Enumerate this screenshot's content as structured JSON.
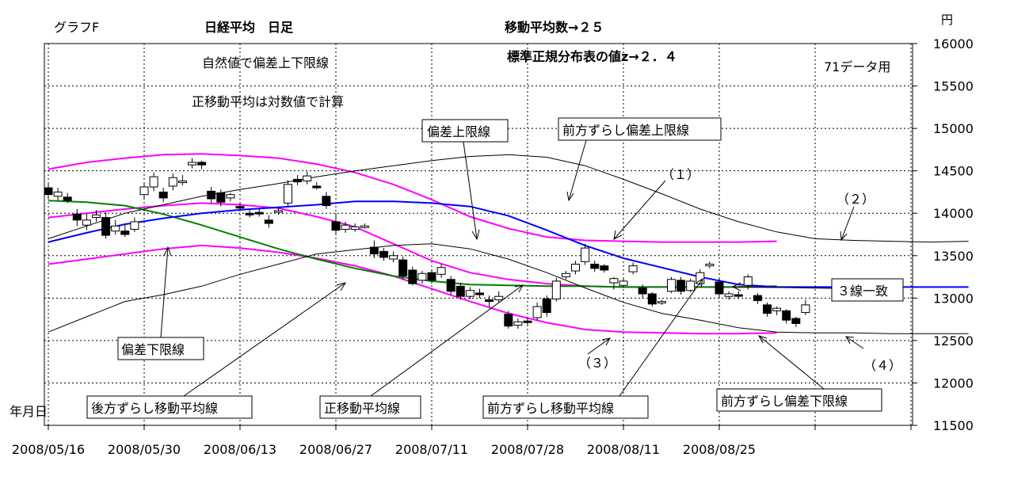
{
  "header": {
    "graph_label": "グラフF",
    "title": "日経平均　日足",
    "ma_period": "移動平均数→２５",
    "z_value": "標準正規分布表の値z→２．４",
    "note_natural": "自然値で偏差上下限線",
    "note_log": "正移動平均は対数値で計算",
    "data_note": "71データ用",
    "y_unit": "円",
    "x_unit": "年月日"
  },
  "annotations": {
    "upper_band": "偏差上限線",
    "forward_upper": "前方ずらし偏差上限線",
    "lower_band": "偏差下限線",
    "backward_ma": "後方ずらし移動平均線",
    "positive_ma": "正移動平均線",
    "forward_ma": "前方ずらし移動平均線",
    "forward_lower": "前方ずらし偏差下限線",
    "three_lines": "３線一致",
    "n1": "（１）",
    "n2": "（２）",
    "n3": "（３）",
    "n4": "（４）"
  },
  "chart_data": {
    "type": "line",
    "title": "日経平均　日足",
    "xlabel": "年月日",
    "ylabel": "円",
    "ylim": [
      11500,
      16000
    ],
    "yticks": [
      11500,
      12000,
      12500,
      13000,
      13500,
      14000,
      14500,
      15000,
      15500,
      16000
    ],
    "xlim": [
      0,
      90
    ],
    "x_ticks": [
      {
        "i": 0,
        "label": "2008/05/16"
      },
      {
        "i": 10,
        "label": "2008/05/30"
      },
      {
        "i": 20,
        "label": "2008/06/13"
      },
      {
        "i": 30,
        "label": "2008/06/27"
      },
      {
        "i": 40,
        "label": "2008/07/11"
      },
      {
        "i": 50,
        "label": "2008/07/28"
      },
      {
        "i": 60,
        "label": "2008/08/11"
      },
      {
        "i": 70,
        "label": "2008/08/25"
      }
    ],
    "grid": true,
    "candles": [
      [
        14300,
        14220,
        14350,
        14180
      ],
      [
        14200,
        14250,
        14300,
        14150
      ],
      [
        14190,
        14150,
        14240,
        14120
      ],
      [
        13990,
        13920,
        14050,
        13850
      ],
      [
        13860,
        13920,
        14000,
        13800
      ],
      [
        13950,
        13980,
        14040,
        13900
      ],
      [
        13950,
        13740,
        14010,
        13700
      ],
      [
        13790,
        13850,
        13920,
        13750
      ],
      [
        13790,
        13750,
        13880,
        13720
      ],
      [
        13810,
        13900,
        13950,
        13780
      ],
      [
        14220,
        14310,
        14360,
        14170
      ],
      [
        14310,
        14430,
        14480,
        14260
      ],
      [
        14250,
        14180,
        14300,
        14130
      ],
      [
        14320,
        14420,
        14470,
        14270
      ],
      [
        14370,
        14380,
        14450,
        14330
      ],
      [
        14570,
        14600,
        14650,
        14530
      ],
      [
        14600,
        14570,
        14620,
        14520
      ],
      [
        14260,
        14170,
        14310,
        14120
      ],
      [
        14240,
        14130,
        14280,
        14080
      ],
      [
        14180,
        14220,
        14240,
        14140
      ],
      [
        14080,
        14070,
        14130,
        14040
      ],
      [
        14000,
        13980,
        14040,
        13950
      ],
      [
        14010,
        14000,
        14060,
        13960
      ],
      [
        13920,
        13880,
        13980,
        13830
      ],
      [
        14020,
        14030,
        14080,
        13980
      ],
      [
        14120,
        14340,
        14390,
        14080
      ],
      [
        14400,
        14370,
        14450,
        14330
      ],
      [
        14380,
        14440,
        14490,
        14340
      ],
      [
        14320,
        14300,
        14370,
        14280
      ],
      [
        14200,
        14090,
        14250,
        14050
      ],
      [
        13900,
        13800,
        14000,
        13750
      ],
      [
        13810,
        13860,
        13900,
        13770
      ],
      [
        13810,
        13840,
        13880,
        13780
      ],
      [
        13840,
        13850,
        13880,
        13820
      ],
      [
        13600,
        13520,
        13680,
        13470
      ],
      [
        13550,
        13480,
        13590,
        13440
      ],
      [
        13460,
        13500,
        13550,
        13420
      ],
      [
        13450,
        13260,
        13490,
        13220
      ],
      [
        13330,
        13170,
        13370,
        13150
      ],
      [
        13210,
        13290,
        13320,
        13170
      ],
      [
        13300,
        13210,
        13340,
        13170
      ],
      [
        13280,
        13360,
        13400,
        13240
      ],
      [
        13220,
        13080,
        13260,
        13040
      ],
      [
        13140,
        13020,
        13180,
        12980
      ],
      [
        13020,
        13090,
        13130,
        12990
      ],
      [
        13060,
        13040,
        13110,
        13000
      ],
      [
        12980,
        12960,
        13030,
        12900
      ],
      [
        12980,
        13020,
        13080,
        12940
      ],
      [
        12810,
        12670,
        12850,
        12640
      ],
      [
        12680,
        12720,
        12760,
        12640
      ],
      [
        12730,
        12720,
        12770,
        12680
      ],
      [
        12770,
        12900,
        12950,
        12740
      ],
      [
        12990,
        12830,
        13030,
        12780
      ],
      [
        12990,
        13200,
        13240,
        12960
      ],
      [
        13250,
        13290,
        13320,
        13220
      ],
      [
        13320,
        13400,
        13440,
        13280
      ],
      [
        13430,
        13590,
        13640,
        13390
      ],
      [
        13400,
        13350,
        13440,
        13310
      ],
      [
        13380,
        13330,
        13400,
        13300
      ],
      [
        13180,
        13230,
        13250,
        13100
      ],
      [
        13150,
        13200,
        13230,
        13120
      ],
      [
        13310,
        13380,
        13420,
        13280
      ],
      [
        13120,
        13050,
        13160,
        13000
      ],
      [
        13050,
        12930,
        13070,
        12900
      ],
      [
        12950,
        12960,
        12980,
        12920
      ],
      [
        13080,
        13220,
        13250,
        13060
      ],
      [
        13210,
        13080,
        13250,
        13040
      ],
      [
        13090,
        13200,
        13230,
        13070
      ],
      [
        13170,
        13300,
        13340,
        13150
      ],
      [
        13380,
        13400,
        13430,
        13350
      ],
      [
        13190,
        13050,
        13230,
        13000
      ],
      [
        13020,
        13050,
        13080,
        12980
      ],
      [
        13040,
        13030,
        13080,
        12990
      ],
      [
        13150,
        13250,
        13280,
        13100
      ],
      [
        13030,
        12970,
        13060,
        12930
      ],
      [
        12920,
        12820,
        12950,
        12780
      ],
      [
        12850,
        12880,
        12900,
        12800
      ],
      [
        12850,
        12740,
        12870,
        12700
      ],
      [
        12760,
        12700,
        12780,
        12660
      ],
      [
        12830,
        12920,
        12980,
        12800
      ]
    ],
    "series": [
      {
        "name": "偏差上限線",
        "color": "#ff00ff",
        "x0": 0,
        "values": [
          14520,
          14600,
          14650,
          14690,
          14700,
          14680,
          14650,
          14580,
          14480,
          14340,
          14160,
          13960,
          13820,
          13720,
          13680,
          13670,
          13660,
          13660,
          13660,
          13670
        ]
      },
      {
        "name": "偏差下限線",
        "color": "#ff00ff",
        "x0": 0,
        "values": [
          13400,
          13460,
          13520,
          13580,
          13620,
          13590,
          13540,
          13470,
          13380,
          13260,
          13110,
          12960,
          12820,
          12710,
          12630,
          12600,
          12590,
          12580,
          12580,
          12590
        ]
      },
      {
        "name": "正移動平均線",
        "color": "#ff00ff",
        "x0": 0,
        "values": [
          13950,
          14000,
          14050,
          14090,
          14120,
          14100,
          14060,
          13960,
          13840,
          13640,
          13440,
          13300,
          13220,
          13170,
          13140,
          13130,
          13130,
          13130,
          13130,
          13130
        ]
      },
      {
        "name": "後方ずらし移動平均線",
        "color": "#008000",
        "x0": 0,
        "values": [
          14150,
          14130,
          14090,
          13990,
          13860,
          13720,
          13580,
          13460,
          13350,
          13260,
          13200,
          13160,
          13150,
          13140,
          13140,
          13130,
          13130,
          13130,
          13130,
          13140
        ]
      },
      {
        "name": "前方ずらし移動平均線",
        "color": "#0000ff",
        "x0": 0,
        "values": [
          13660,
          13770,
          13870,
          13940,
          14000,
          14040,
          14070,
          14100,
          14140,
          14140,
          14120,
          14080,
          13970,
          13800,
          13620,
          13470,
          13360,
          13250,
          13160,
          13130,
          13130,
          13130,
          13130,
          13130,
          13130
        ]
      },
      {
        "name": "前方ずらし偏差上限線",
        "color": "#000000",
        "x0": 0,
        "values": [
          13700,
          13850,
          14000,
          14100,
          14200,
          14280,
          14350,
          14430,
          14500,
          14560,
          14620,
          14670,
          14690,
          14660,
          14560,
          14400,
          14230,
          14050,
          13900,
          13780,
          13700,
          13680,
          13670,
          13660,
          13670
        ]
      },
      {
        "name": "前方ずらし偏差下限線",
        "color": "#000000",
        "x0": 0,
        "values": [
          12600,
          12780,
          12960,
          13040,
          13140,
          13280,
          13400,
          13520,
          13570,
          13620,
          13640,
          13580,
          13460,
          13300,
          13120,
          12950,
          12820,
          12740,
          12650,
          12600,
          12590,
          12590,
          12580,
          12580,
          12580
        ]
      }
    ]
  }
}
